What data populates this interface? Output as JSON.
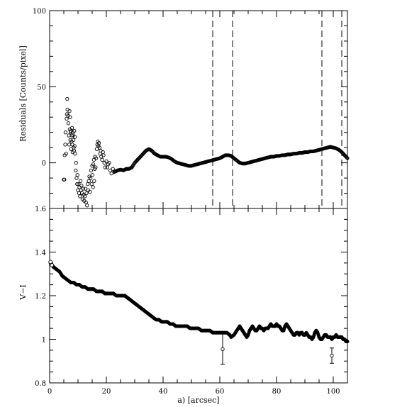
{
  "chart_data": [
    {
      "type": "scatter",
      "panel": "top",
      "ylabel": "Residuals [Counts/pixel]",
      "xlim": [
        0,
        105
      ],
      "ylim": [
        -30,
        100
      ],
      "yticks": [
        {
          "v": 100,
          "label": "100"
        },
        {
          "v": 50,
          "label": "50"
        },
        {
          "v": 0,
          "label": "0"
        }
      ],
      "vlines_dashed": [
        57.5,
        64.5,
        96,
        103
      ],
      "scatter_points": [
        [
          5.0,
          -11
        ],
        [
          5.2,
          -11
        ],
        [
          5.3,
          5
        ],
        [
          5.5,
          12
        ],
        [
          5.6,
          20
        ],
        [
          5.8,
          6
        ],
        [
          6.0,
          29
        ],
        [
          6.1,
          32
        ],
        [
          6.2,
          42
        ],
        [
          6.3,
          35
        ],
        [
          6.5,
          31
        ],
        [
          6.6,
          26
        ],
        [
          6.8,
          18
        ],
        [
          6.9,
          12
        ],
        [
          7.0,
          34
        ],
        [
          7.1,
          22
        ],
        [
          7.2,
          30
        ],
        [
          7.3,
          15
        ],
        [
          7.4,
          20
        ],
        [
          7.5,
          21
        ],
        [
          7.6,
          9
        ],
        [
          7.7,
          14
        ],
        [
          7.8,
          18
        ],
        [
          7.9,
          23
        ],
        [
          8.0,
          12
        ],
        [
          8.1,
          7
        ],
        [
          8.2,
          20
        ],
        [
          8.3,
          18
        ],
        [
          8.4,
          15
        ],
        [
          8.5,
          10
        ],
        [
          8.6,
          8
        ],
        [
          8.7,
          21
        ],
        [
          8.8,
          11
        ],
        [
          8.9,
          17
        ],
        [
          9.0,
          6
        ],
        [
          9.2,
          -5
        ],
        [
          9.3,
          0
        ],
        [
          9.5,
          -10
        ],
        [
          9.7,
          -14
        ],
        [
          9.8,
          -8
        ],
        [
          10.0,
          -18
        ],
        [
          10.2,
          -14
        ],
        [
          10.4,
          -20
        ],
        [
          10.5,
          -16
        ],
        [
          10.7,
          -22
        ],
        [
          10.9,
          -12
        ],
        [
          11.0,
          -18
        ],
        [
          11.2,
          -15
        ],
        [
          11.4,
          -20
        ],
        [
          11.6,
          -24
        ],
        [
          11.8,
          -17
        ],
        [
          12.0,
          -21
        ],
        [
          12.2,
          -25
        ],
        [
          12.4,
          -22
        ],
        [
          12.6,
          -17
        ],
        [
          12.8,
          -26
        ],
        [
          13.0,
          -20
        ],
        [
          13.2,
          -28
        ],
        [
          13.4,
          -14
        ],
        [
          13.6,
          -18
        ],
        [
          13.8,
          -12
        ],
        [
          14.0,
          -9
        ],
        [
          14.2,
          -19
        ],
        [
          14.4,
          -10
        ],
        [
          14.6,
          -5
        ],
        [
          14.8,
          -14
        ],
        [
          15.0,
          -2
        ],
        [
          15.1,
          -8
        ],
        [
          15.3,
          -16
        ],
        [
          15.4,
          -1
        ],
        [
          15.6,
          2
        ],
        [
          15.7,
          -12
        ],
        [
          15.9,
          -4
        ],
        [
          16.0,
          4
        ],
        [
          16.2,
          -3
        ],
        [
          16.4,
          3
        ],
        [
          16.6,
          9
        ],
        [
          16.8,
          12
        ],
        [
          17.0,
          14
        ],
        [
          17.2,
          11
        ],
        [
          17.4,
          13
        ],
        [
          17.6,
          10
        ],
        [
          17.8,
          6
        ],
        [
          18.0,
          8
        ],
        [
          18.2,
          4
        ],
        [
          18.5,
          2
        ],
        [
          18.8,
          7
        ],
        [
          19.0,
          5
        ],
        [
          19.3,
          0
        ],
        [
          19.6,
          -3
        ],
        [
          20.0,
          1
        ],
        [
          20.3,
          -3
        ],
        [
          20.6,
          -1
        ],
        [
          21.0,
          0
        ],
        [
          21.4,
          -5
        ],
        [
          21.8,
          -7
        ],
        [
          22.3,
          -4
        ],
        [
          22.8,
          -6
        ]
      ],
      "curve": [
        [
          22.8,
          -6
        ],
        [
          24,
          -5
        ],
        [
          25,
          -4.5
        ],
        [
          26,
          -5
        ],
        [
          27,
          -4
        ],
        [
          28,
          -4
        ],
        [
          29,
          -3
        ],
        [
          30,
          0
        ],
        [
          31,
          2
        ],
        [
          32,
          4
        ],
        [
          33,
          6
        ],
        [
          34,
          8
        ],
        [
          35,
          9
        ],
        [
          36,
          8
        ],
        [
          37,
          6
        ],
        [
          38,
          5
        ],
        [
          39,
          4
        ],
        [
          40,
          4
        ],
        [
          41,
          4
        ],
        [
          42,
          3.5
        ],
        [
          43,
          2.5
        ],
        [
          44,
          1
        ],
        [
          45,
          0
        ],
        [
          46,
          -0.5
        ],
        [
          47,
          -1
        ],
        [
          48,
          -1.5
        ],
        [
          49,
          -2
        ],
        [
          50,
          -2
        ],
        [
          51,
          -1.5
        ],
        [
          52,
          -1
        ],
        [
          53,
          -0.5
        ],
        [
          54,
          0
        ],
        [
          55,
          0.5
        ],
        [
          56,
          1
        ],
        [
          57,
          1.5
        ],
        [
          58,
          2
        ],
        [
          59,
          2.5
        ],
        [
          60,
          3
        ],
        [
          61,
          4
        ],
        [
          62,
          5
        ],
        [
          63,
          5
        ],
        [
          64,
          4.5
        ],
        [
          65,
          3
        ],
        [
          66,
          1.5
        ],
        [
          67,
          0
        ],
        [
          68,
          -0.5
        ],
        [
          69,
          -0.5
        ],
        [
          70,
          0
        ],
        [
          71,
          0.5
        ],
        [
          72,
          1
        ],
        [
          73,
          1.5
        ],
        [
          74,
          2
        ],
        [
          75,
          2.5
        ],
        [
          76,
          3
        ],
        [
          77,
          3.5
        ],
        [
          78,
          4
        ],
        [
          79,
          4
        ],
        [
          80,
          4.5
        ],
        [
          81,
          4.5
        ],
        [
          82,
          5
        ],
        [
          83,
          5
        ],
        [
          84,
          5.5
        ],
        [
          85,
          5.5
        ],
        [
          86,
          6
        ],
        [
          87,
          6
        ],
        [
          88,
          6.5
        ],
        [
          89,
          6.5
        ],
        [
          90,
          7
        ],
        [
          91,
          7
        ],
        [
          92,
          7.5
        ],
        [
          93,
          7.5
        ],
        [
          94,
          8
        ],
        [
          95,
          8.5
        ],
        [
          96,
          9
        ],
        [
          97,
          9.5
        ],
        [
          98,
          10
        ],
        [
          99,
          10.5
        ],
        [
          100,
          10
        ],
        [
          101,
          9.5
        ],
        [
          102,
          8.5
        ],
        [
          103,
          7
        ],
        [
          104,
          5
        ],
        [
          105,
          3
        ]
      ]
    },
    {
      "type": "scatter",
      "panel": "bottom",
      "ylabel": "V−I",
      "xlabel": "a) [arcsec]",
      "xlim": [
        0,
        105
      ],
      "ylim": [
        0.8,
        1.6
      ],
      "xticks": [
        {
          "v": 0,
          "label": "0"
        },
        {
          "v": 20,
          "label": "20"
        },
        {
          "v": 40,
          "label": "40"
        },
        {
          "v": 60,
          "label": "60"
        },
        {
          "v": 80,
          "label": "80"
        },
        {
          "v": 100,
          "label": "100"
        }
      ],
      "yticks": [
        {
          "v": 1.6,
          "label": "1.6"
        },
        {
          "v": 1.4,
          "label": "1.4"
        },
        {
          "v": 1.2,
          "label": "1.2"
        },
        {
          "v": 1.0,
          "label": "1"
        },
        {
          "v": 0.8,
          "label": "0.8"
        }
      ],
      "curve": [
        [
          0.3,
          1.35
        ],
        [
          0.8,
          1.34
        ],
        [
          1.5,
          1.33
        ],
        [
          2.5,
          1.32
        ],
        [
          3.5,
          1.31
        ],
        [
          4.5,
          1.29
        ],
        [
          5.5,
          1.28
        ],
        [
          6.5,
          1.27
        ],
        [
          7.5,
          1.26
        ],
        [
          8.5,
          1.26
        ],
        [
          9.5,
          1.25
        ],
        [
          10.5,
          1.25
        ],
        [
          11.5,
          1.24
        ],
        [
          12.5,
          1.24
        ],
        [
          13.5,
          1.23
        ],
        [
          14.5,
          1.23
        ],
        [
          15.5,
          1.23
        ],
        [
          16.5,
          1.22
        ],
        [
          17.5,
          1.22
        ],
        [
          18.5,
          1.22
        ],
        [
          19.5,
          1.21
        ],
        [
          20.5,
          1.21
        ],
        [
          21.5,
          1.21
        ],
        [
          22.5,
          1.21
        ],
        [
          23.5,
          1.2
        ],
        [
          24.5,
          1.2
        ],
        [
          25.5,
          1.2
        ],
        [
          26.5,
          1.2
        ],
        [
          27.5,
          1.19
        ],
        [
          28.5,
          1.18
        ],
        [
          29.5,
          1.17
        ],
        [
          30.5,
          1.16
        ],
        [
          31.5,
          1.15
        ],
        [
          32.5,
          1.14
        ],
        [
          33.5,
          1.13
        ],
        [
          34.5,
          1.12
        ],
        [
          35.5,
          1.11
        ],
        [
          36.5,
          1.1
        ],
        [
          37.5,
          1.09
        ],
        [
          38.5,
          1.09
        ],
        [
          39.5,
          1.08
        ],
        [
          40.5,
          1.08
        ],
        [
          41.5,
          1.08
        ],
        [
          42.5,
          1.07
        ],
        [
          43.5,
          1.07
        ],
        [
          44.5,
          1.06
        ],
        [
          45.5,
          1.06
        ],
        [
          46.5,
          1.06
        ],
        [
          47.5,
          1.06
        ],
        [
          48.5,
          1.06
        ],
        [
          49.5,
          1.05
        ],
        [
          50.5,
          1.05
        ],
        [
          51.5,
          1.05
        ],
        [
          52.5,
          1.05
        ],
        [
          53.5,
          1.04
        ],
        [
          54.5,
          1.04
        ],
        [
          55.5,
          1.04
        ],
        [
          56.5,
          1.04
        ],
        [
          57.5,
          1.03
        ],
        [
          58.5,
          1.03
        ],
        [
          59.5,
          1.03
        ],
        [
          60.5,
          1.03
        ],
        [
          61.5,
          1.03
        ],
        [
          62.5,
          1.03
        ],
        [
          63.5,
          1.02
        ],
        [
          64,
          1.01
        ],
        [
          65,
          1.02
        ],
        [
          65.5,
          1.03
        ],
        [
          66,
          1.04
        ],
        [
          66.5,
          1.05
        ],
        [
          67,
          1.06
        ],
        [
          67.5,
          1.05
        ],
        [
          68,
          1.04
        ],
        [
          68.5,
          1.03
        ],
        [
          69,
          1.02
        ],
        [
          69.5,
          1.01
        ],
        [
          70,
          1.02
        ],
        [
          70.5,
          1.04
        ],
        [
          71,
          1.05
        ],
        [
          71.5,
          1.06
        ],
        [
          72,
          1.05
        ],
        [
          72.5,
          1.04
        ],
        [
          73,
          1.04
        ],
        [
          73.5,
          1.05
        ],
        [
          74,
          1.06
        ],
        [
          74.5,
          1.05
        ],
        [
          75,
          1.05
        ],
        [
          75.5,
          1.04
        ],
        [
          76,
          1.05
        ],
        [
          76.5,
          1.05
        ],
        [
          77,
          1.05
        ],
        [
          77.5,
          1.06
        ],
        [
          78,
          1.07
        ],
        [
          78.5,
          1.06
        ],
        [
          79,
          1.06
        ],
        [
          79.5,
          1.06
        ],
        [
          80,
          1.07
        ],
        [
          80.5,
          1.06
        ],
        [
          81,
          1.06
        ],
        [
          81.5,
          1.05
        ],
        [
          82,
          1.04
        ],
        [
          82.5,
          1.04
        ],
        [
          83,
          1.06
        ],
        [
          83.5,
          1.07
        ],
        [
          84,
          1.06
        ],
        [
          84.5,
          1.05
        ],
        [
          85,
          1.04
        ],
        [
          85.5,
          1.03
        ],
        [
          86,
          1.02
        ],
        [
          86.5,
          1.02
        ],
        [
          87,
          1.03
        ],
        [
          87.5,
          1.03
        ],
        [
          88,
          1.02
        ],
        [
          88.5,
          1.03
        ],
        [
          89,
          1.03
        ],
        [
          89.5,
          1.02
        ],
        [
          90,
          1.02
        ],
        [
          90.5,
          1.03
        ],
        [
          91,
          1.02
        ],
        [
          91.5,
          1.01
        ],
        [
          92,
          1.01
        ],
        [
          92.5,
          1.0
        ],
        [
          93,
          1.01
        ],
        [
          93.5,
          1.03
        ],
        [
          94,
          1.04
        ],
        [
          94.5,
          1.03
        ],
        [
          95,
          1.01
        ],
        [
          95.5,
          1.0
        ],
        [
          96,
          1.0
        ],
        [
          96.5,
          1.01
        ],
        [
          97,
          1.02
        ],
        [
          97.5,
          1.02
        ],
        [
          98,
          1.01
        ],
        [
          98.5,
          1.01
        ],
        [
          99,
          1.01
        ],
        [
          99.5,
          1.0
        ],
        [
          100,
          1.01
        ],
        [
          100.5,
          1.01
        ],
        [
          101,
          1.02
        ],
        [
          101.5,
          1.01
        ],
        [
          102,
          1.01
        ],
        [
          102.5,
          1.01
        ],
        [
          103,
          1.01
        ],
        [
          103.5,
          1.0
        ],
        [
          104,
          1.0
        ],
        [
          104.5,
          0.99
        ],
        [
          105,
          0.99
        ]
      ],
      "open_points": [
        [
          0.3,
          1.355
        ],
        [
          0.8,
          1.34
        ]
      ],
      "error_points": [
        {
          "x": 61,
          "y": 0.955,
          "err": 0.07
        },
        {
          "x": 99.5,
          "y": 0.925,
          "err": 0.035
        }
      ]
    }
  ]
}
